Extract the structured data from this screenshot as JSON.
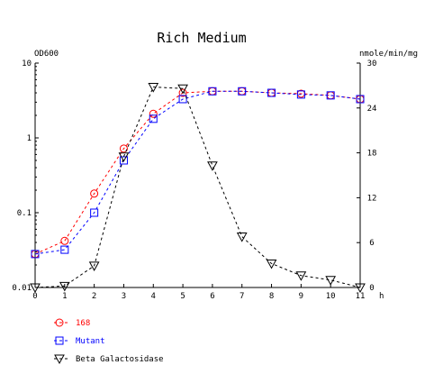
{
  "chart_data": {
    "type": "line",
    "title": "Rich Medium",
    "xlabel": "h",
    "y_left_label": "OD600",
    "y_right_label": "nmole/min/mg",
    "x_ticks": [
      "0",
      "1",
      "2",
      "3",
      "4",
      "5",
      "6",
      "7",
      "8",
      "9",
      "10",
      "11"
    ],
    "y_left_ticks": [
      "0.01",
      "0.1",
      "1",
      "10"
    ],
    "y_right_ticks": [
      "0",
      "6",
      "12",
      "18",
      "24",
      "30"
    ],
    "xlim": [
      0,
      11
    ],
    "y_left_scale": "log",
    "y_left_lim": [
      0.01,
      10
    ],
    "y_right_lim": [
      0,
      30
    ],
    "grid": false,
    "legend_position": "bottom-left",
    "series": [
      {
        "name": "168",
        "axis": "left",
        "color": "#ff0000",
        "marker": "circle",
        "linestyle": "dashed",
        "x": [
          0,
          1,
          2,
          3,
          4,
          5,
          6,
          7,
          8,
          9,
          10,
          11
        ],
        "y": [
          0.028,
          0.042,
          0.18,
          0.72,
          2.1,
          4.0,
          4.2,
          4.2,
          4.0,
          3.9,
          3.7,
          3.3
        ]
      },
      {
        "name": "Mutant",
        "axis": "left",
        "color": "#0000ff",
        "marker": "square",
        "linestyle": "dashed",
        "x": [
          0,
          1,
          2,
          3,
          4,
          5,
          6,
          7,
          8,
          9,
          10,
          11
        ],
        "y": [
          0.028,
          0.032,
          0.1,
          0.5,
          1.8,
          3.3,
          4.2,
          4.2,
          4.0,
          3.8,
          3.7,
          3.3
        ]
      },
      {
        "name": "Beta Galactosidase",
        "axis": "right",
        "color": "#000000",
        "marker": "triangle-down",
        "linestyle": "dashed",
        "x": [
          0,
          1,
          2,
          3,
          4,
          5,
          6,
          7,
          8,
          9,
          10,
          11
        ],
        "y": [
          0,
          0.2,
          2.9,
          17.5,
          26.8,
          26.6,
          16.3,
          6.8,
          3.2,
          1.6,
          1.0,
          0
        ]
      }
    ]
  }
}
